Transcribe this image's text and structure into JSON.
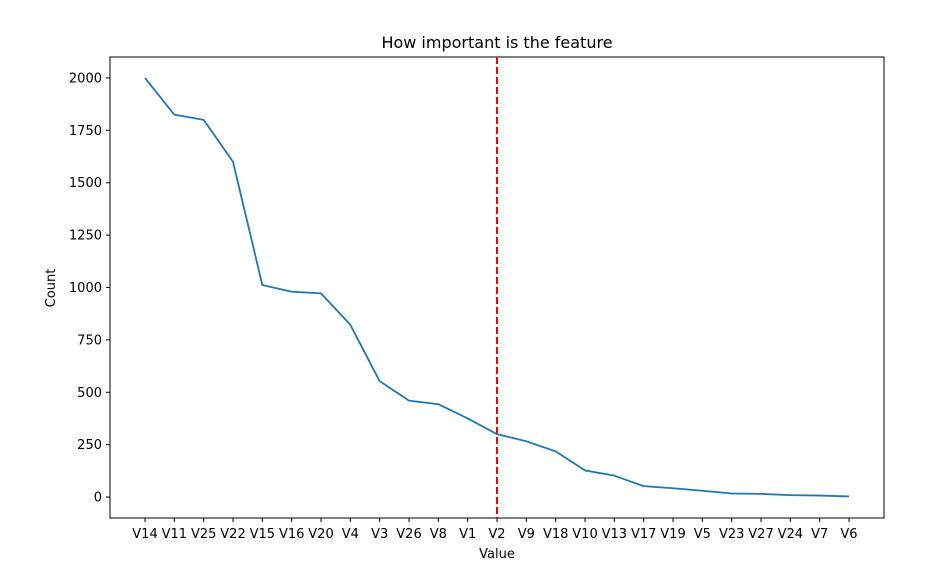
{
  "chart_data": {
    "type": "line",
    "title": "How important is the feature",
    "xlabel": "Value",
    "ylabel": "Count",
    "categories": [
      "V14",
      "V11",
      "V25",
      "V22",
      "V15",
      "V16",
      "V20",
      "V4",
      "V3",
      "V26",
      "V8",
      "V1",
      "V2",
      "V9",
      "V18",
      "V10",
      "V13",
      "V17",
      "V19",
      "V5",
      "V23",
      "V27",
      "V24",
      "V7",
      "V6"
    ],
    "series": [
      {
        "color": "#1f77b4",
        "values": [
          2000,
          1825,
          1800,
          1600,
          1012,
          980,
          972,
          822,
          553,
          460,
          443,
          375,
          300,
          266,
          218,
          127,
          102,
          52,
          42,
          30,
          17,
          15,
          9,
          7,
          3
        ]
      }
    ],
    "yticks": [
      0,
      250,
      500,
      750,
      1000,
      1250,
      1500,
      1750,
      2000
    ],
    "ylim": [
      -100,
      2100
    ],
    "vline": {
      "category": "V2",
      "color": "#ff0000",
      "style": "dashed"
    },
    "grid": false
  }
}
